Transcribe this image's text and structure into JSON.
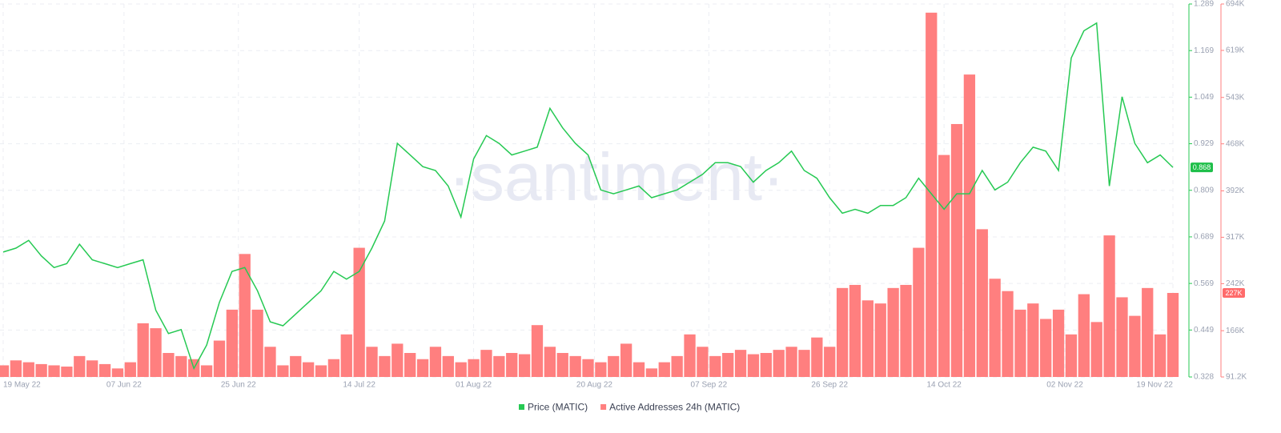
{
  "chart_data": {
    "type": "combo",
    "watermark": "·santiment·",
    "x": [
      "2022-05-19",
      "2022-05-21",
      "2022-05-23",
      "2022-05-25",
      "2022-05-27",
      "2022-05-29",
      "2022-05-31",
      "2022-06-02",
      "2022-06-04",
      "2022-06-06",
      "2022-06-08",
      "2022-06-10",
      "2022-06-12",
      "2022-06-14",
      "2022-06-16",
      "2022-06-18",
      "2022-06-20",
      "2022-06-22",
      "2022-06-24",
      "2022-06-26",
      "2022-06-28",
      "2022-06-30",
      "2022-07-02",
      "2022-07-04",
      "2022-07-06",
      "2022-07-08",
      "2022-07-10",
      "2022-07-12",
      "2022-07-14",
      "2022-07-16",
      "2022-07-18",
      "2022-07-20",
      "2022-07-22",
      "2022-07-24",
      "2022-07-26",
      "2022-07-28",
      "2022-07-30",
      "2022-08-01",
      "2022-08-03",
      "2022-08-05",
      "2022-08-07",
      "2022-08-09",
      "2022-08-11",
      "2022-08-13",
      "2022-08-15",
      "2022-08-17",
      "2022-08-19",
      "2022-08-21",
      "2022-08-23",
      "2022-08-25",
      "2022-08-27",
      "2022-08-29",
      "2022-08-31",
      "2022-09-02",
      "2022-09-04",
      "2022-09-06",
      "2022-09-08",
      "2022-09-10",
      "2022-09-12",
      "2022-09-14",
      "2022-09-16",
      "2022-09-18",
      "2022-09-20",
      "2022-09-22",
      "2022-09-24",
      "2022-09-26",
      "2022-09-28",
      "2022-09-30",
      "2022-10-02",
      "2022-10-04",
      "2022-10-06",
      "2022-10-08",
      "2022-10-10",
      "2022-10-12",
      "2022-10-14",
      "2022-10-16",
      "2022-10-18",
      "2022-10-20",
      "2022-10-22",
      "2022-10-24",
      "2022-10-26",
      "2022-10-28",
      "2022-10-30",
      "2022-11-01",
      "2022-11-03",
      "2022-11-05",
      "2022-11-07",
      "2022-11-09",
      "2022-11-11",
      "2022-11-13",
      "2022-11-15",
      "2022-11-17",
      "2022-11-19"
    ],
    "xticks": [
      {
        "value": "2022-05-19",
        "label": "19 May 22"
      },
      {
        "value": "2022-06-07",
        "label": "07 Jun 22"
      },
      {
        "value": "2022-06-25",
        "label": "25 Jun 22"
      },
      {
        "value": "2022-07-14",
        "label": "14 Jul 22"
      },
      {
        "value": "2022-08-01",
        "label": "01 Aug 22"
      },
      {
        "value": "2022-08-20",
        "label": "20 Aug 22"
      },
      {
        "value": "2022-09-07",
        "label": "07 Sep 22"
      },
      {
        "value": "2022-09-26",
        "label": "26 Sep 22"
      },
      {
        "value": "2022-10-14",
        "label": "14 Oct 22"
      },
      {
        "value": "2022-11-02",
        "label": "02 Nov 22"
      },
      {
        "value": "2022-11-19",
        "label": "19 Nov 22"
      }
    ],
    "ylim": [
      0.328,
      1.289
    ],
    "yticks": [
      0.328,
      0.449,
      0.569,
      0.689,
      0.809,
      0.929,
      1.049,
      1.169,
      1.289
    ],
    "y2lim": [
      91200,
      694000
    ],
    "y2ticks": [
      {
        "value": 91200,
        "label": "91.2K"
      },
      {
        "value": 166000,
        "label": "166K"
      },
      {
        "value": 242000,
        "label": "242K"
      },
      {
        "value": 317000,
        "label": "317K"
      },
      {
        "value": 392000,
        "label": "392K"
      },
      {
        "value": 468000,
        "label": "468K"
      },
      {
        "value": 543000,
        "label": "543K"
      },
      {
        "value": 619000,
        "label": "619K"
      },
      {
        "value": 694000,
        "label": "694K"
      }
    ],
    "grid": true,
    "series": [
      {
        "name": "Price (MATIC)",
        "type": "line",
        "axis": "y",
        "color": "#26c953",
        "current_label": "0.868",
        "values": [
          0.65,
          0.66,
          0.68,
          0.64,
          0.61,
          0.62,
          0.67,
          0.63,
          0.62,
          0.61,
          0.62,
          0.63,
          0.5,
          0.44,
          0.45,
          0.35,
          0.41,
          0.52,
          0.6,
          0.61,
          0.55,
          0.47,
          0.46,
          0.49,
          0.52,
          0.55,
          0.6,
          0.58,
          0.6,
          0.66,
          0.73,
          0.93,
          0.9,
          0.87,
          0.86,
          0.82,
          0.74,
          0.89,
          0.95,
          0.93,
          0.9,
          0.91,
          0.92,
          1.02,
          0.97,
          0.93,
          0.9,
          0.81,
          0.8,
          0.81,
          0.82,
          0.79,
          0.8,
          0.81,
          0.83,
          0.85,
          0.88,
          0.88,
          0.87,
          0.83,
          0.86,
          0.88,
          0.91,
          0.86,
          0.84,
          0.79,
          0.75,
          0.76,
          0.75,
          0.77,
          0.77,
          0.79,
          0.84,
          0.8,
          0.76,
          0.8,
          0.8,
          0.86,
          0.81,
          0.83,
          0.88,
          0.92,
          0.91,
          0.86,
          1.15,
          1.22,
          1.24,
          0.82,
          1.05,
          0.93,
          0.88,
          0.9,
          0.868
        ]
      },
      {
        "name": "Active Addresses 24h (MATIC)",
        "type": "bar",
        "axis": "y2",
        "color": "#ff7f7f",
        "current_label": "227K",
        "values": [
          110000,
          118000,
          115000,
          112000,
          110000,
          108000,
          125000,
          118000,
          112000,
          105000,
          115000,
          178000,
          170000,
          130000,
          125000,
          120000,
          110000,
          150000,
          200000,
          290000,
          200000,
          140000,
          110000,
          125000,
          115000,
          110000,
          120000,
          160000,
          300000,
          140000,
          125000,
          145000,
          130000,
          120000,
          140000,
          125000,
          115000,
          120000,
          135000,
          125000,
          130000,
          128000,
          175000,
          140000,
          130000,
          125000,
          120000,
          115000,
          125000,
          145000,
          115000,
          105000,
          115000,
          125000,
          160000,
          140000,
          125000,
          130000,
          135000,
          128000,
          130000,
          135000,
          140000,
          135000,
          155000,
          140000,
          235000,
          240000,
          215000,
          210000,
          235000,
          240000,
          300000,
          680000,
          450000,
          500000,
          580000,
          330000,
          250000,
          230000,
          200000,
          210000,
          185000,
          200000,
          160000,
          225000,
          180000,
          320000,
          220000,
          190000,
          235000,
          160000,
          227000
        ]
      }
    ]
  }
}
